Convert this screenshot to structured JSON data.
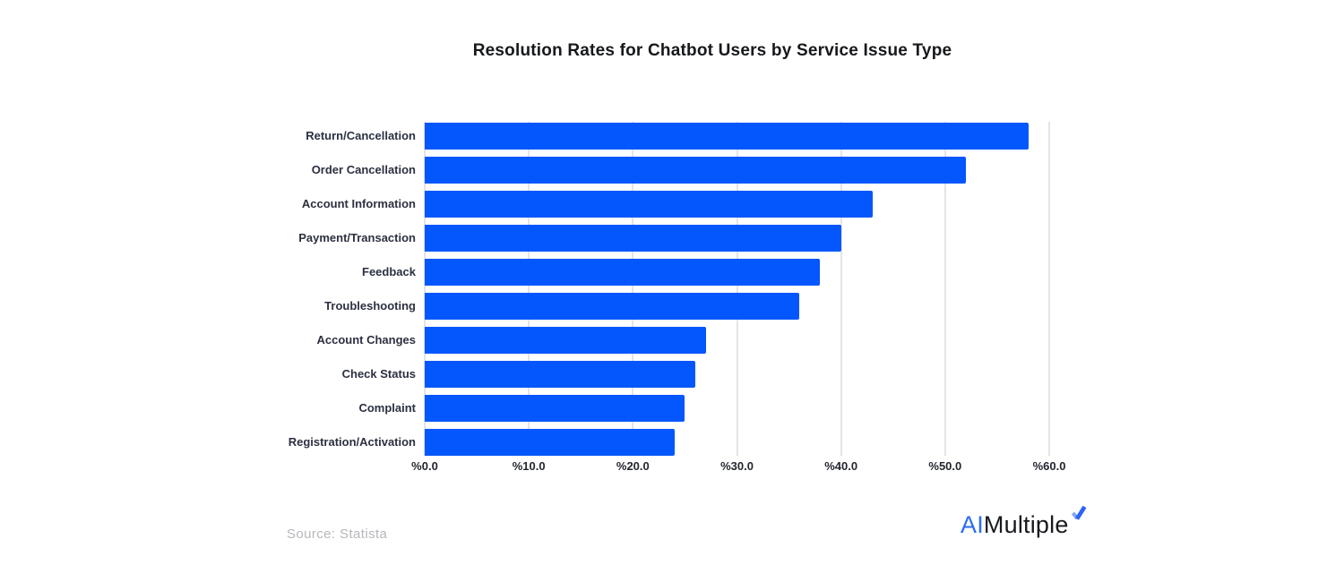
{
  "title": "Resolution Rates for Chatbot Users by Service Issue Type",
  "source_note": "Source: Statista",
  "logo": {
    "part1": "AI",
    "part2": "Multiple",
    "mark": "spark-check-icon"
  },
  "colors": {
    "bar": "#0357fc",
    "gridline": "#e3e4e7",
    "title": "#16181c",
    "category_label": "#2c3040",
    "tick_label": "#23272f",
    "source": "#b5b8bc",
    "logo_blue": "#2e6bf2",
    "logo_dark": "#17191e",
    "mark_light_blue": "#7fa5fb",
    "mark_dark_blue": "#2a63f5"
  },
  "chart_data": {
    "type": "bar",
    "orientation": "horizontal",
    "title": "Resolution Rates for Chatbot Users by Service Issue Type",
    "xlabel": "",
    "ylabel": "",
    "categories": [
      "Return/Cancellation",
      "Order Cancellation",
      "Account Information",
      "Payment/Transaction",
      "Feedback",
      "Troubleshooting",
      "Account Changes",
      "Check Status",
      "Complaint",
      "Registration/Activation"
    ],
    "values": [
      58,
      52,
      43,
      40,
      38,
      36,
      27,
      26,
      25,
      24
    ],
    "value_unit": "percent",
    "xlim": [
      0,
      60
    ],
    "tick_values": [
      0,
      10,
      20,
      30,
      40,
      50,
      60
    ],
    "tick_labels": [
      "%0.0",
      "%10.0",
      "%20.0",
      "%30.0",
      "%40.0",
      "%50.0",
      "%60.0"
    ],
    "grid": "vertical",
    "legend": "none"
  }
}
